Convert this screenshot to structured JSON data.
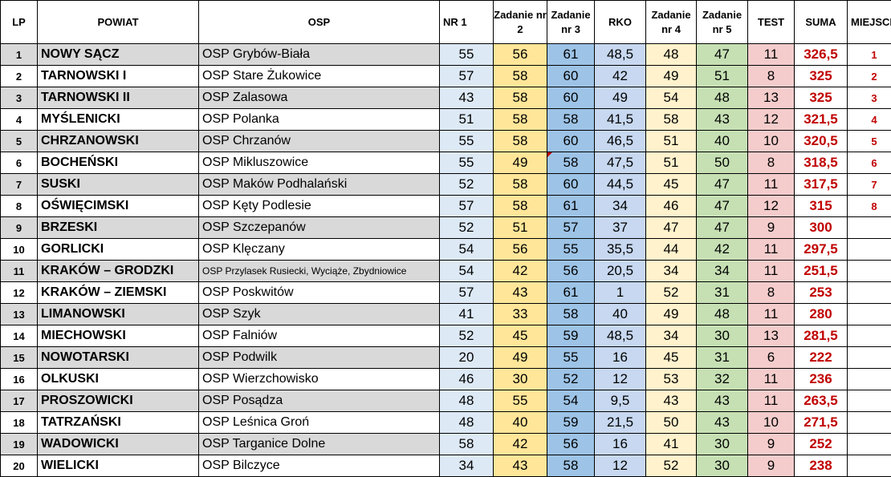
{
  "headers": {
    "lp": "LP",
    "powiat": "POWIAT",
    "osp": "OSP",
    "nr1": "NR 1",
    "z2": "Zadanie nr 2",
    "z3": "Zadanie nr 3",
    "rko": "RKO",
    "z4": "Zadanie nr 4",
    "z5": "Zadanie nr 5",
    "test": "TEST",
    "suma": "SUMA",
    "miejsce": "MIEJSCE"
  },
  "rows": [
    {
      "lp": "1",
      "powiat": "NOWY SĄCZ",
      "osp": "OSP Grybów-Biała",
      "nr1": "55",
      "z2": "56",
      "z3": "61",
      "rko": "48,5",
      "z4": "48",
      "z5": "47",
      "test": "11",
      "suma": "326,5",
      "miejsce": "1"
    },
    {
      "lp": "2",
      "powiat": "TARNOWSKI I",
      "osp": "OSP Stare Żukowice",
      "nr1": "57",
      "z2": "58",
      "z3": "60",
      "rko": "42",
      "z4": "49",
      "z5": "51",
      "test": "8",
      "suma": "325",
      "miejsce": "2"
    },
    {
      "lp": "3",
      "powiat": "TARNOWSKI II",
      "osp": "OSP Zalasowa",
      "nr1": "43",
      "z2": "58",
      "z3": "60",
      "rko": "49",
      "z4": "54",
      "z5": "48",
      "test": "13",
      "suma": "325",
      "miejsce": "3"
    },
    {
      "lp": "4",
      "powiat": "MYŚLENICKI",
      "osp": "OSP Polanka",
      "nr1": "51",
      "z2": "58",
      "z3": "58",
      "rko": "41,5",
      "z4": "58",
      "z5": "43",
      "test": "12",
      "suma": "321,5",
      "miejsce": "4"
    },
    {
      "lp": "5",
      "powiat": "CHRZANOWSKI",
      "osp": "OSP Chrzanów",
      "nr1": "55",
      "z2": "58",
      "z3": "60",
      "rko": "46,5",
      "z4": "51",
      "z5": "40",
      "test": "10",
      "suma": "320,5",
      "miejsce": "5"
    },
    {
      "lp": "6",
      "powiat": "BOCHEŃSKI",
      "osp": "OSP Mikluszowice",
      "nr1": "55",
      "z2": "49",
      "z3": "58",
      "rko": "47,5",
      "z4": "51",
      "z5": "50",
      "test": "8",
      "suma": "318,5",
      "miejsce": "6"
    },
    {
      "lp": "7",
      "powiat": "SUSKI",
      "osp": "OSP Maków Podhalański",
      "nr1": "52",
      "z2": "58",
      "z3": "60",
      "rko": "44,5",
      "z4": "45",
      "z5": "47",
      "test": "11",
      "suma": "317,5",
      "miejsce": "7"
    },
    {
      "lp": "8",
      "powiat": "OŚWIĘCIMSKI",
      "osp": "OSP Kęty Podlesie",
      "nr1": "57",
      "z2": "58",
      "z3": "61",
      "rko": "34",
      "z4": "46",
      "z5": "47",
      "test": "12",
      "suma": "315",
      "miejsce": "8"
    },
    {
      "lp": "9",
      "powiat": "BRZESKI",
      "osp": "OSP Szczepanów",
      "nr1": "52",
      "z2": "51",
      "z3": "57",
      "rko": "37",
      "z4": "47",
      "z5": "47",
      "test": "9",
      "suma": "300",
      "miejsce": ""
    },
    {
      "lp": "10",
      "powiat": "GORLICKI",
      "osp": "OSP Klęczany",
      "nr1": "54",
      "z2": "56",
      "z3": "55",
      "rko": "35,5",
      "z4": "44",
      "z5": "42",
      "test": "11",
      "suma": "297,5",
      "miejsce": ""
    },
    {
      "lp": "11",
      "powiat": "KRAKÓW – GRODZKI",
      "osp": "OSP Przylasek Rusiecki, Wyciąże, Zbydniowice",
      "nr1": "54",
      "z2": "42",
      "z3": "56",
      "rko": "20,5",
      "z4": "34",
      "z5": "34",
      "test": "11",
      "suma": "251,5",
      "miejsce": ""
    },
    {
      "lp": "12",
      "powiat": "KRAKÓW – ZIEMSKI",
      "osp": "OSP Poskwitów",
      "nr1": "57",
      "z2": "43",
      "z3": "61",
      "rko": "1",
      "z4": "52",
      "z5": "31",
      "test": "8",
      "suma": "253",
      "miejsce": ""
    },
    {
      "lp": "13",
      "powiat": "LIMANOWSKI",
      "osp": "OSP Szyk",
      "nr1": "41",
      "z2": "33",
      "z3": "58",
      "rko": "40",
      "z4": "49",
      "z5": "48",
      "test": "11",
      "suma": "280",
      "miejsce": ""
    },
    {
      "lp": "14",
      "powiat": "MIECHOWSKI",
      "osp": "OSP Falniów",
      "nr1": "52",
      "z2": "45",
      "z3": "59",
      "rko": "48,5",
      "z4": "34",
      "z5": "30",
      "test": "13",
      "suma": "281,5",
      "miejsce": ""
    },
    {
      "lp": "15",
      "powiat": "NOWOTARSKI",
      "osp": "OSP Podwilk",
      "nr1": "20",
      "z2": "49",
      "z3": "55",
      "rko": "16",
      "z4": "45",
      "z5": "31",
      "test": "6",
      "suma": "222",
      "miejsce": ""
    },
    {
      "lp": "16",
      "powiat": "OLKUSKI",
      "osp": "OSP Wierzchowisko",
      "nr1": "46",
      "z2": "30",
      "z3": "52",
      "rko": "12",
      "z4": "53",
      "z5": "32",
      "test": "11",
      "suma": "236",
      "miejsce": ""
    },
    {
      "lp": "17",
      "powiat": "PROSZOWICKI",
      "osp": "OSP Posądza",
      "nr1": "48",
      "z2": "55",
      "z3": "54",
      "rko": "9,5",
      "z4": "43",
      "z5": "43",
      "test": "11",
      "suma": "263,5",
      "miejsce": ""
    },
    {
      "lp": "18",
      "powiat": "TATRZAŃSKI",
      "osp": "OSP Leśnica Groń",
      "nr1": "48",
      "z2": "40",
      "z3": "59",
      "rko": "21,5",
      "z4": "50",
      "z5": "43",
      "test": "10",
      "suma": "271,5",
      "miejsce": ""
    },
    {
      "lp": "19",
      "powiat": "WADOWICKI",
      "osp": "OSP Targanice Dolne",
      "nr1": "58",
      "z2": "42",
      "z3": "56",
      "rko": "16",
      "z4": "41",
      "z5": "30",
      "test": "9",
      "suma": "252",
      "miejsce": ""
    },
    {
      "lp": "20",
      "powiat": "WIELICKI",
      "osp": "OSP Bilczyce",
      "nr1": "34",
      "z2": "43",
      "z3": "58",
      "rko": "12",
      "z4": "52",
      "z5": "30",
      "test": "9",
      "suma": "238",
      "miejsce": ""
    }
  ]
}
